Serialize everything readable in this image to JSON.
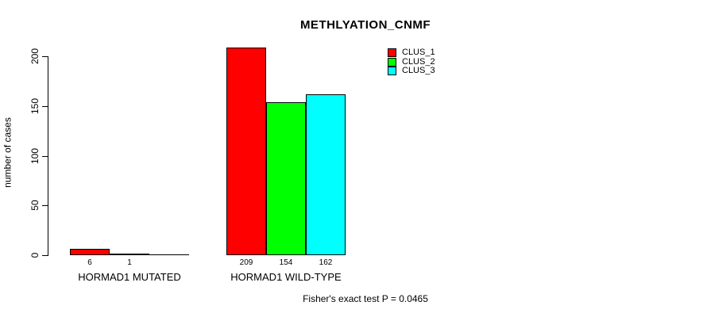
{
  "chart_data": {
    "type": "bar",
    "title": "METHLYATION_CNMF",
    "xlabel": "",
    "ylabel": "number of cases",
    "ylim": [
      0,
      200
    ],
    "yticks": [
      "0",
      "50",
      "100",
      "150",
      "200"
    ],
    "categories": [
      "HORMAD1 MUTATED",
      "HORMAD1 WILD-TYPE"
    ],
    "series": [
      {
        "name": "CLUS_1",
        "color": "#ff0000",
        "values": [
          6,
          209
        ]
      },
      {
        "name": "CLUS_2",
        "color": "#00ff00",
        "values": [
          1,
          154
        ]
      },
      {
        "name": "CLUS_3",
        "color": "#00ffff",
        "values": [
          0,
          162
        ]
      }
    ],
    "bar_value_labels": [
      [
        "6",
        "1",
        ""
      ],
      [
        "209",
        "154",
        "162"
      ]
    ],
    "grid": false,
    "legend_position": "top-right",
    "annotation": "Fisher's exact test P = 0.0465",
    "axis_color": "#000000",
    "background_color": "#ffffff"
  }
}
